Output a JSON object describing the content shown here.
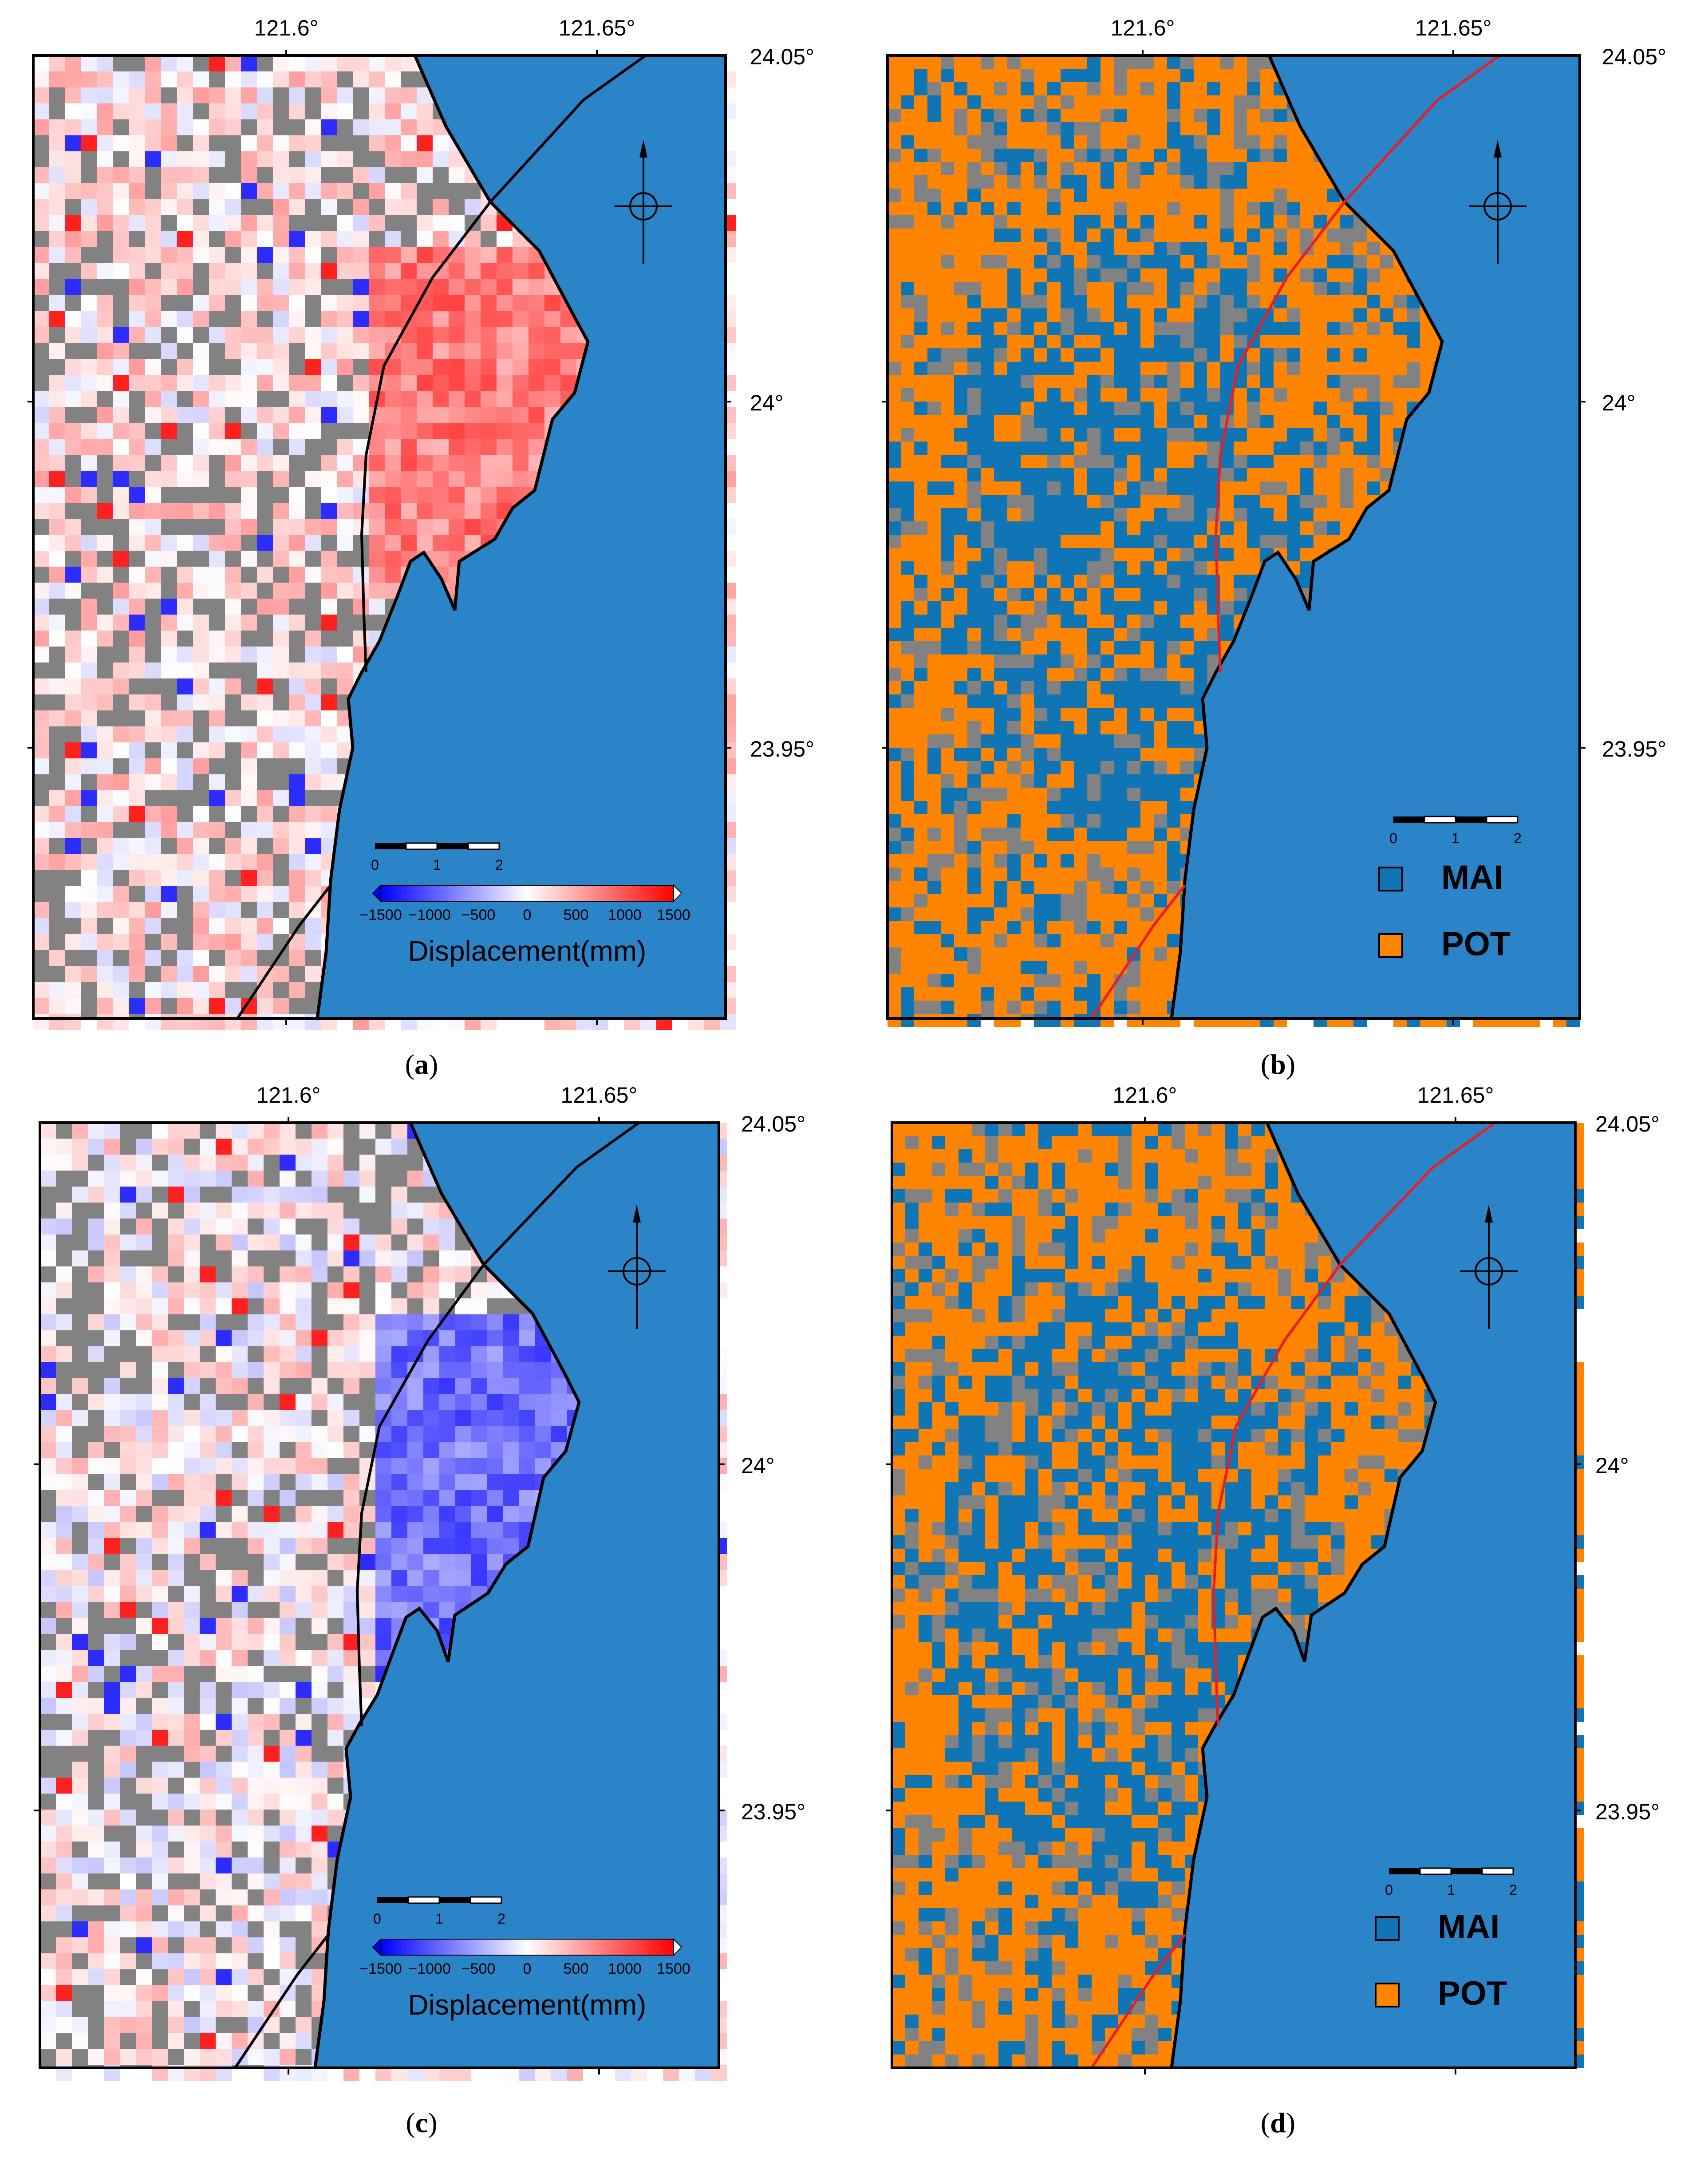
{
  "colors": {
    "sea": "#2b84c8",
    "mask": "#828282",
    "mai": "#0f75b5",
    "pot": "#ff8400",
    "fault_panels_bd": "#e2202a",
    "fault_panels_ac": "#000000",
    "coast": "#000000"
  },
  "axes": {
    "lon_ticks": [
      "121.6°",
      "121.65°"
    ],
    "lat_ticks": [
      "24.05°",
      "24°",
      "23.95°"
    ]
  },
  "colorbar": {
    "ticks": [
      "−1500",
      "−1000",
      "−500",
      "0",
      "500",
      "1000",
      "1500"
    ],
    "title": "Displacement(mm)",
    "cmap": "blue-white-red"
  },
  "scalebar": {
    "ticks": [
      "0",
      "1",
      "2"
    ]
  },
  "legend": {
    "items": [
      {
        "label": "MAI",
        "color": "#0f75b5"
      },
      {
        "label": "POT",
        "color": "#ff8400"
      }
    ]
  },
  "panels": [
    {
      "id": "a",
      "type": "displacement",
      "polarity": "red",
      "caption_letter": "a"
    },
    {
      "id": "b",
      "type": "classification",
      "caption_letter": "b"
    },
    {
      "id": "c",
      "type": "displacement",
      "polarity": "blue",
      "caption_letter": "c"
    },
    {
      "id": "d",
      "type": "classification",
      "caption_letter": "d"
    }
  ]
}
